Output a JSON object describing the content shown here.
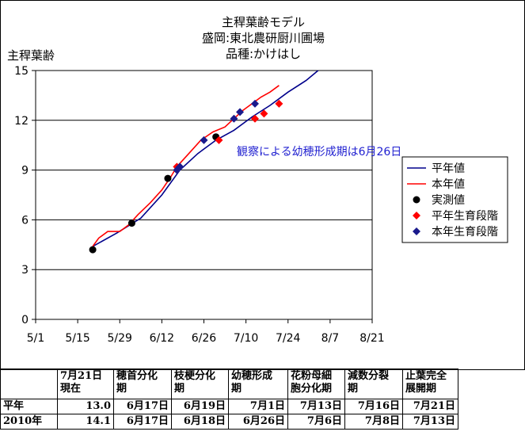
{
  "chart_data": {
    "type": "line",
    "title_lines": [
      "主稈葉齢モデル",
      "盛岡:東北農研厨川圃場",
      "品種:かけはし"
    ],
    "ylabel": "主稈葉齢",
    "ylim": [
      0,
      15
    ],
    "yticks": [
      0,
      3,
      6,
      9,
      12,
      15
    ],
    "xlim": [
      "5/1",
      "8/21"
    ],
    "xtick_labels": [
      "5/1",
      "5/15",
      "5/29",
      "6/12",
      "6/26",
      "7/10",
      "7/24",
      "8/7",
      "8/21"
    ],
    "grid": "horizontal",
    "legend_position": "right",
    "annotation": "観察による幼穂形成期は6月26日",
    "series": [
      {
        "name": "平年値",
        "kind": "line",
        "color": "#00008b",
        "points": [
          [
            "5/20",
            4.4
          ],
          [
            "5/28",
            5.2
          ],
          [
            "6/5",
            6.1
          ],
          [
            "6/12",
            7.5
          ],
          [
            "6/18",
            9.0
          ],
          [
            "6/24",
            10.0
          ],
          [
            "6/30",
            10.8
          ],
          [
            "7/6",
            11.4
          ],
          [
            "7/12",
            12.2
          ],
          [
            "7/18",
            12.9
          ],
          [
            "7/24",
            13.7
          ],
          [
            "7/30",
            14.4
          ],
          [
            "8/3",
            15.0
          ]
        ]
      },
      {
        "name": "本年値",
        "kind": "line",
        "color": "#ff0000",
        "points": [
          [
            "5/20",
            4.4
          ],
          [
            "5/22",
            4.9
          ],
          [
            "5/25",
            5.3
          ],
          [
            "5/29",
            5.3
          ],
          [
            "6/1",
            5.7
          ],
          [
            "6/4",
            6.3
          ],
          [
            "6/8",
            7.0
          ],
          [
            "6/12",
            7.8
          ],
          [
            "6/15",
            8.6
          ],
          [
            "6/17",
            9.2
          ],
          [
            "6/21",
            10.0
          ],
          [
            "6/25",
            10.8
          ],
          [
            "6/29",
            11.3
          ],
          [
            "7/3",
            11.6
          ],
          [
            "7/6",
            12.1
          ],
          [
            "7/9",
            12.6
          ],
          [
            "7/12",
            13.0
          ],
          [
            "7/15",
            13.4
          ],
          [
            "7/18",
            13.7
          ],
          [
            "7/21",
            14.1
          ]
        ]
      },
      {
        "name": "実測値",
        "kind": "marker",
        "color": "#000000",
        "points": [
          [
            "5/20",
            4.2
          ],
          [
            "6/2",
            5.8
          ],
          [
            "6/14",
            8.5
          ],
          [
            "6/30",
            11.0
          ]
        ]
      },
      {
        "name": "平年生育段階",
        "kind": "marker",
        "color": "#ff0000",
        "points": [
          [
            "6/17",
            9.2
          ],
          [
            "7/1",
            10.8
          ],
          [
            "7/13",
            12.1
          ],
          [
            "7/16",
            12.4
          ],
          [
            "7/21",
            13.0
          ]
        ]
      },
      {
        "name": "本年生育段階",
        "kind": "marker",
        "color": "#1a1a8c",
        "points": [
          [
            "6/17",
            9.0
          ],
          [
            "6/18",
            9.2
          ],
          [
            "6/26",
            10.8
          ],
          [
            "7/6",
            12.1
          ],
          [
            "7/8",
            12.5
          ],
          [
            "7/13",
            13.0
          ]
        ]
      }
    ]
  },
  "table": {
    "headers": [
      "",
      "7月21日\n現在",
      "穂首分化\n期",
      "枝梗分化\n期",
      "幼穂形成\n期",
      "花粉母細\n胞分化期",
      "減数分裂\n期",
      "止葉完全\n展開期"
    ],
    "rows": [
      [
        "平年",
        "13.0",
        "6月17日",
        "6月19日",
        "7月1日",
        "7月13日",
        "7月16日",
        "7月21日"
      ],
      [
        "2010年",
        "14.1",
        "6月17日",
        "6月18日",
        "6月26日",
        "7月6日",
        "7月8日",
        "7月13日"
      ]
    ]
  }
}
